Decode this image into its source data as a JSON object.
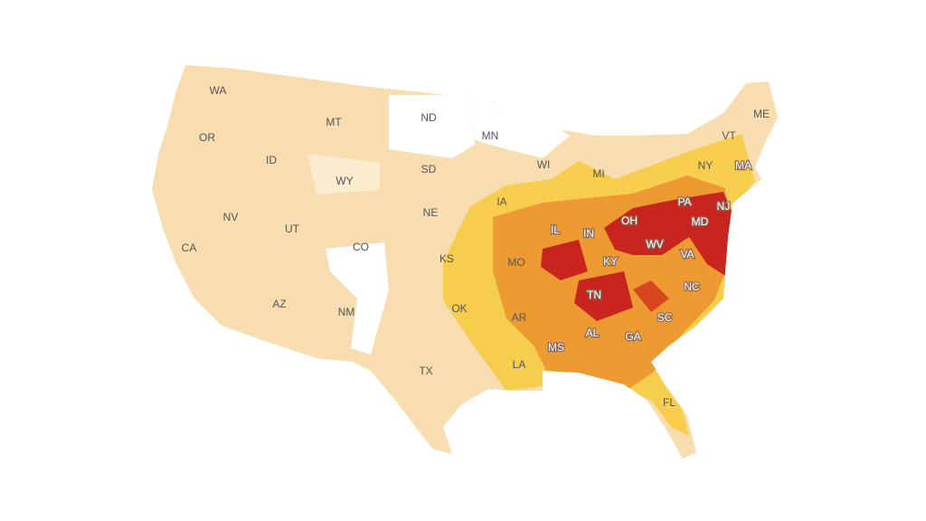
{
  "map": {
    "states": [
      "WA",
      "OR",
      "CA",
      "ID",
      "NV",
      "MT",
      "WY",
      "UT",
      "AZ",
      "CO",
      "NM",
      "ND",
      "SD",
      "NE",
      "KS",
      "OK",
      "TX",
      "MN",
      "IA",
      "MO",
      "AR",
      "LA",
      "WI",
      "IL",
      "MI",
      "IN",
      "KY",
      "TN",
      "MS",
      "AL",
      "OH",
      "WV",
      "GA",
      "SC",
      "NC",
      "VA",
      "PA",
      "MD",
      "NJ",
      "NY",
      "VT",
      "ME",
      "MA",
      "FL"
    ]
  }
}
